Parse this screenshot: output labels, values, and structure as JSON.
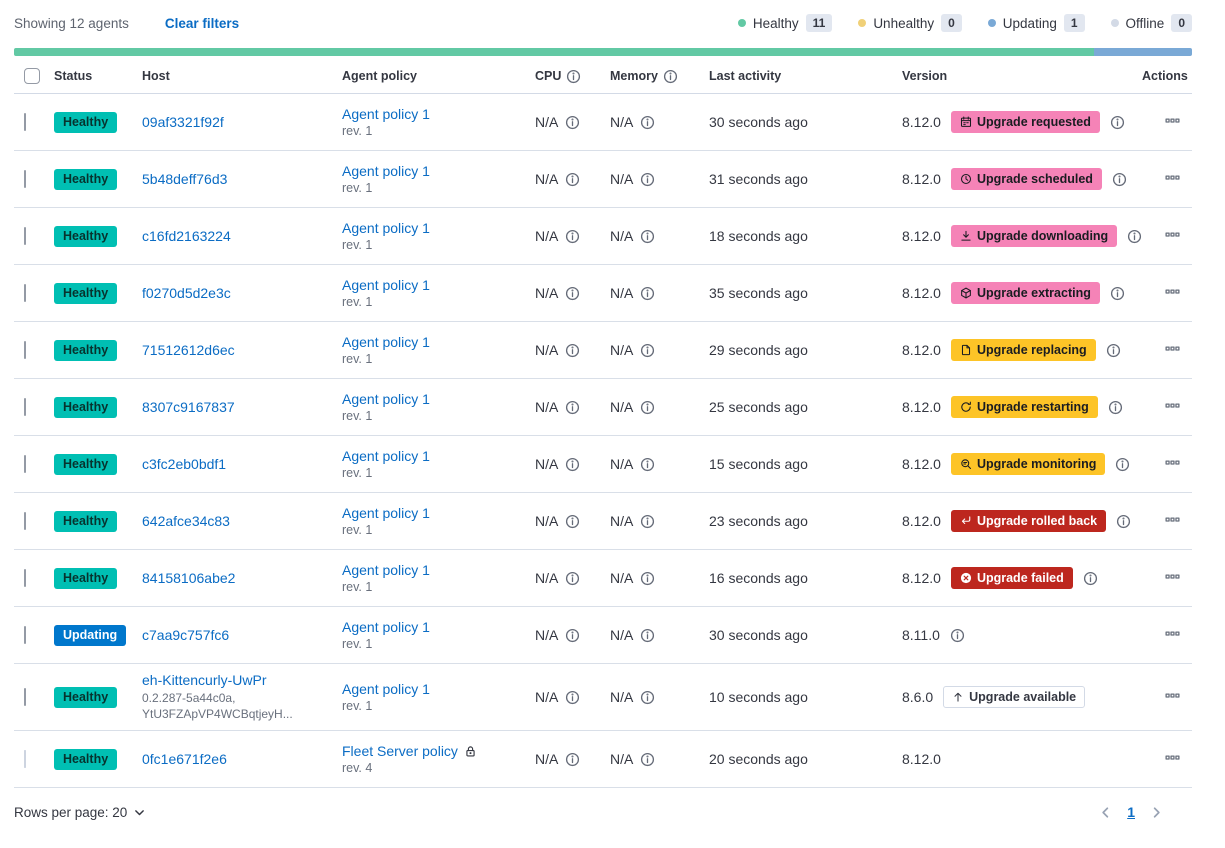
{
  "toolbar": {
    "showing": "Showing 12 agents",
    "clear_filters": "Clear filters"
  },
  "legend": [
    {
      "label": "Healthy",
      "count": "11",
      "color": "#62c9a4"
    },
    {
      "label": "Unhealthy",
      "count": "0",
      "color": "#f0d078"
    },
    {
      "label": "Updating",
      "count": "1",
      "color": "#7aa9d6"
    },
    {
      "label": "Offline",
      "count": "0",
      "color": "#d3dae6"
    }
  ],
  "health_bar": [
    {
      "name": "healthy",
      "color": "#62c9a4",
      "percent": 91.7
    },
    {
      "name": "updating",
      "color": "#7aa9d6",
      "percent": 8.3
    }
  ],
  "table": {
    "columns": {
      "status": "Status",
      "host": "Host",
      "policy": "Agent policy",
      "cpu": "CPU",
      "memory": "Memory",
      "last_activity": "Last activity",
      "version": "Version",
      "actions": "Actions"
    }
  },
  "status_variants": {
    "healthy": {
      "bg": "#00bfb3",
      "text": "#07332e",
      "label": "Healthy"
    },
    "updating": {
      "bg": "#0077cc",
      "text": "#ffffff",
      "label": "Updating"
    }
  },
  "badge_variants": {
    "accent": {
      "bg": "#f583b7",
      "text": "#1a1c21",
      "border": "transparent"
    },
    "warning": {
      "bg": "#fdc427",
      "text": "#1a1c21",
      "border": "transparent"
    },
    "danger": {
      "bg": "#bd271e",
      "text": "#ffffff",
      "border": "transparent"
    },
    "hollow": {
      "bg": "#ffffff",
      "text": "#343741",
      "border": "#d3dae6"
    }
  },
  "rows": [
    {
      "status": "healthy",
      "host": "09af3321f92f",
      "host_meta": [],
      "policy": {
        "name": "Agent policy 1",
        "rev": "rev. 1",
        "locked": false
      },
      "cpu": "N/A",
      "memory": "N/A",
      "last_activity": "30 seconds ago",
      "version": "8.12.0",
      "upgrade_badge": {
        "label": "Upgrade requested",
        "variant": "accent",
        "icon": "calendar"
      },
      "version_info": true,
      "checkbox_disabled": false
    },
    {
      "status": "healthy",
      "host": "5b48deff76d3",
      "host_meta": [],
      "policy": {
        "name": "Agent policy 1",
        "rev": "rev. 1",
        "locked": false
      },
      "cpu": "N/A",
      "memory": "N/A",
      "last_activity": "31 seconds ago",
      "version": "8.12.0",
      "upgrade_badge": {
        "label": "Upgrade scheduled",
        "variant": "accent",
        "icon": "clock"
      },
      "version_info": true,
      "checkbox_disabled": false
    },
    {
      "status": "healthy",
      "host": "c16fd2163224",
      "host_meta": [],
      "policy": {
        "name": "Agent policy 1",
        "rev": "rev. 1",
        "locked": false
      },
      "cpu": "N/A",
      "memory": "N/A",
      "last_activity": "18 seconds ago",
      "version": "8.12.0",
      "upgrade_badge": {
        "label": "Upgrade downloading",
        "variant": "accent",
        "icon": "download"
      },
      "version_info": true,
      "checkbox_disabled": false
    },
    {
      "status": "healthy",
      "host": "f0270d5d2e3c",
      "host_meta": [],
      "policy": {
        "name": "Agent policy 1",
        "rev": "rev. 1",
        "locked": false
      },
      "cpu": "N/A",
      "memory": "N/A",
      "last_activity": "35 seconds ago",
      "version": "8.12.0",
      "upgrade_badge": {
        "label": "Upgrade extracting",
        "variant": "accent",
        "icon": "package"
      },
      "version_info": true,
      "checkbox_disabled": false
    },
    {
      "status": "healthy",
      "host": "71512612d6ec",
      "host_meta": [],
      "policy": {
        "name": "Agent policy 1",
        "rev": "rev. 1",
        "locked": false
      },
      "cpu": "N/A",
      "memory": "N/A",
      "last_activity": "29 seconds ago",
      "version": "8.12.0",
      "upgrade_badge": {
        "label": "Upgrade replacing",
        "variant": "warning",
        "icon": "document"
      },
      "version_info": true,
      "checkbox_disabled": false
    },
    {
      "status": "healthy",
      "host": "8307c9167837",
      "host_meta": [],
      "policy": {
        "name": "Agent policy 1",
        "rev": "rev. 1",
        "locked": false
      },
      "cpu": "N/A",
      "memory": "N/A",
      "last_activity": "25 seconds ago",
      "version": "8.12.0",
      "upgrade_badge": {
        "label": "Upgrade restarting",
        "variant": "warning",
        "icon": "refresh"
      },
      "version_info": true,
      "checkbox_disabled": false
    },
    {
      "status": "healthy",
      "host": "c3fc2eb0bdf1",
      "host_meta": [],
      "policy": {
        "name": "Agent policy 1",
        "rev": "rev. 1",
        "locked": false
      },
      "cpu": "N/A",
      "memory": "N/A",
      "last_activity": "15 seconds ago",
      "version": "8.12.0",
      "upgrade_badge": {
        "label": "Upgrade monitoring",
        "variant": "warning",
        "icon": "inspect"
      },
      "version_info": true,
      "checkbox_disabled": false
    },
    {
      "status": "healthy",
      "host": "642afce34c83",
      "host_meta": [],
      "policy": {
        "name": "Agent policy 1",
        "rev": "rev. 1",
        "locked": false
      },
      "cpu": "N/A",
      "memory": "N/A",
      "last_activity": "23 seconds ago",
      "version": "8.12.0",
      "upgrade_badge": {
        "label": "Upgrade rolled back",
        "variant": "danger",
        "icon": "return"
      },
      "version_info": true,
      "checkbox_disabled": false
    },
    {
      "status": "healthy",
      "host": "84158106abe2",
      "host_meta": [],
      "policy": {
        "name": "Agent policy 1",
        "rev": "rev. 1",
        "locked": false
      },
      "cpu": "N/A",
      "memory": "N/A",
      "last_activity": "16 seconds ago",
      "version": "8.12.0",
      "upgrade_badge": {
        "label": "Upgrade failed",
        "variant": "danger",
        "icon": "error"
      },
      "version_info": true,
      "checkbox_disabled": false
    },
    {
      "status": "updating",
      "host": "c7aa9c757fc6",
      "host_meta": [],
      "policy": {
        "name": "Agent policy 1",
        "rev": "rev. 1",
        "locked": false
      },
      "cpu": "N/A",
      "memory": "N/A",
      "last_activity": "30 seconds ago",
      "version": "8.11.0",
      "upgrade_badge": null,
      "version_info": true,
      "checkbox_disabled": false
    },
    {
      "status": "healthy",
      "host": "eh-Kittencurly-UwPr",
      "host_meta": [
        "0.2.287-5a44c0a,",
        "YtU3FZApVP4WCBqtjeyH..."
      ],
      "policy": {
        "name": "Agent policy 1",
        "rev": "rev. 1",
        "locked": false
      },
      "cpu": "N/A",
      "memory": "N/A",
      "last_activity": "10 seconds ago",
      "version": "8.6.0",
      "upgrade_badge": {
        "label": "Upgrade available",
        "variant": "hollow",
        "icon": "arrowUp"
      },
      "version_info": false,
      "checkbox_disabled": false
    },
    {
      "status": "healthy",
      "host": "0fc1e671f2e6",
      "host_meta": [],
      "policy": {
        "name": "Fleet Server policy",
        "rev": "rev. 4",
        "locked": true
      },
      "cpu": "N/A",
      "memory": "N/A",
      "last_activity": "20 seconds ago",
      "version": "8.12.0",
      "upgrade_badge": null,
      "version_info": false,
      "checkbox_disabled": true
    }
  ],
  "footer": {
    "rows_per_page": "Rows per page: 20",
    "page": "1"
  }
}
